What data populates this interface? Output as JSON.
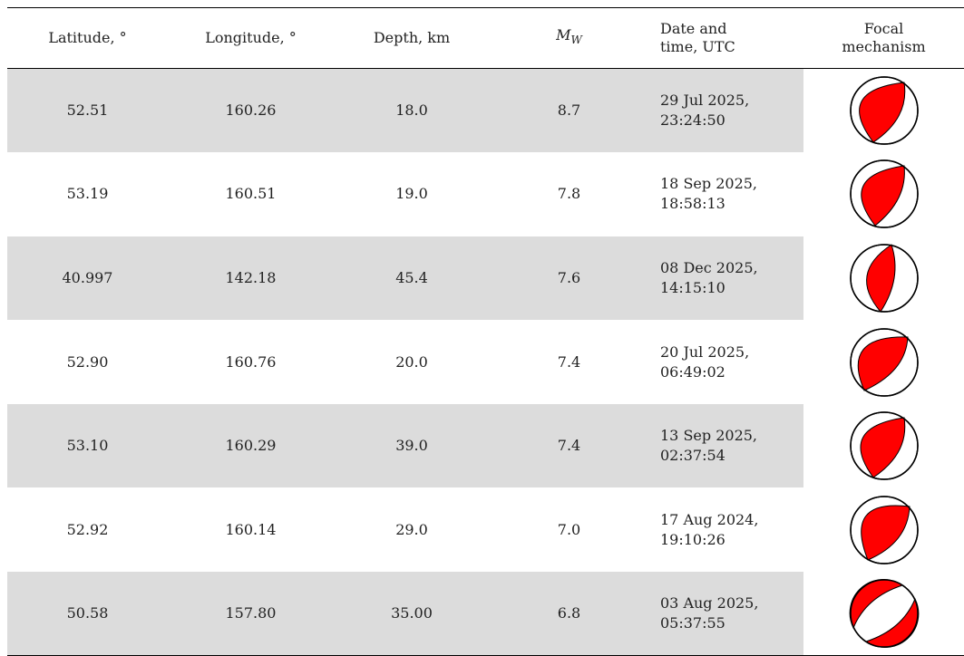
{
  "table": {
    "header": [
      "Latitude, °",
      "Longitude, °",
      "Depth, km",
      {
        "symbol": "M",
        "subscript": "W"
      },
      "Date and time, UTC",
      "Focal mechanism"
    ],
    "rows": [
      [
        "52.51",
        "160.26",
        "18.0",
        "8.7",
        "29 Jul 2025, 23:24:50"
      ],
      [
        "53.19",
        "160.51",
        "19.0",
        "7.8",
        "18 Sep 2025, 18:58:13"
      ],
      [
        "40.997",
        "142.18",
        "45.4",
        "7.6",
        "08 Dec 2025, 14:15:10"
      ],
      [
        "52.90",
        "160.76",
        "20.0",
        "7.4",
        "20 Jul 2025, 06:49:02"
      ],
      [
        "53.10",
        "160.29",
        "39.0",
        "7.4",
        "13 Sep 2025, 02:37:54"
      ],
      [
        "52.92",
        "160.14",
        "29.0",
        "7.0",
        "17 Aug 2024, 19:10:26"
      ],
      [
        "50.58",
        "157.80",
        "35.00",
        "6.8",
        "03 Aug 2025, 05:37:55"
      ]
    ]
  }
}
